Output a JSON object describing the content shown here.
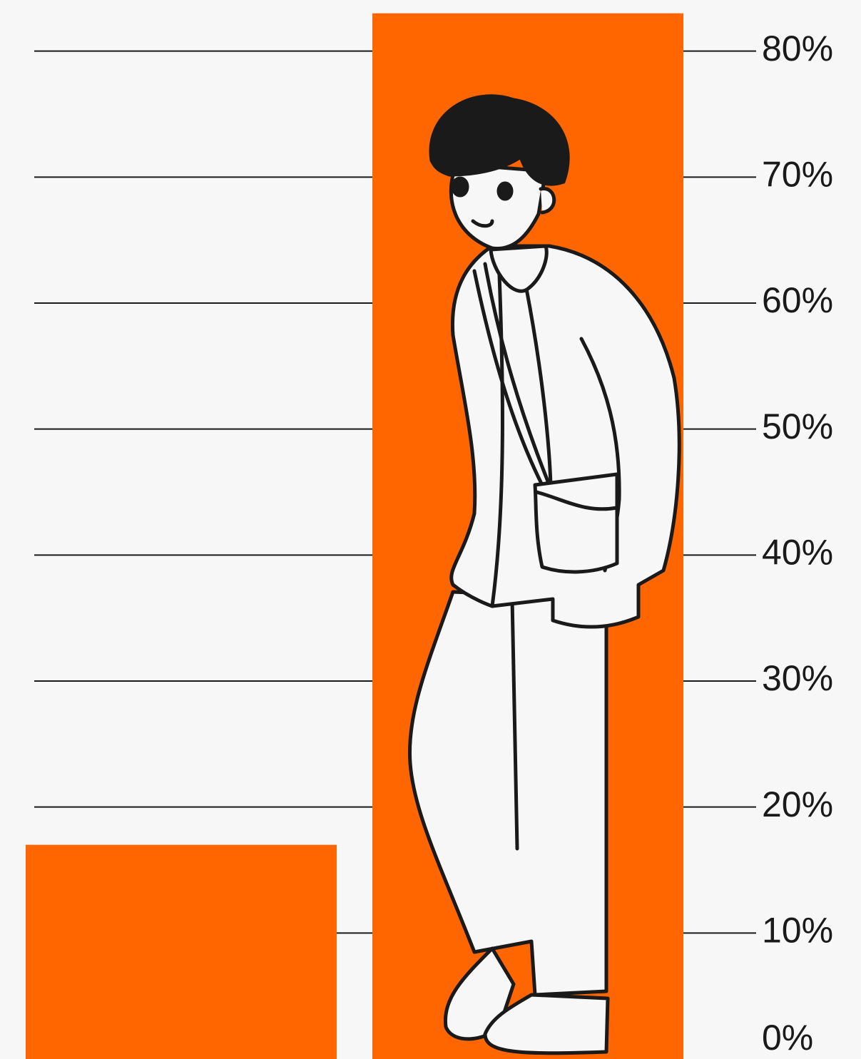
{
  "chart_data": {
    "type": "bar",
    "categories": [
      null,
      null
    ],
    "values": [
      17,
      83
    ],
    "color": "#ff6600",
    "ylim": [
      0,
      84
    ],
    "yticks": [
      {
        "value": 0,
        "label": "0%"
      },
      {
        "value": 10,
        "label": "10%"
      },
      {
        "value": 20,
        "label": "20%"
      },
      {
        "value": 30,
        "label": "30%"
      },
      {
        "value": 40,
        "label": "40%"
      },
      {
        "value": 50,
        "label": "50%"
      },
      {
        "value": 60,
        "label": "60%"
      },
      {
        "value": 70,
        "label": "70%"
      },
      {
        "value": 80,
        "label": "80%"
      }
    ],
    "grid": true
  }
}
